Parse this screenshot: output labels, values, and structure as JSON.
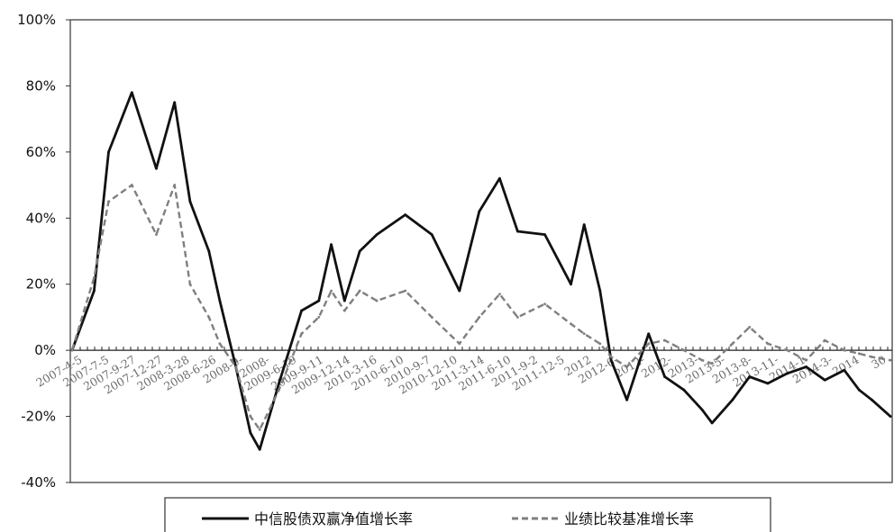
{
  "chart_data": {
    "type": "line",
    "title": "",
    "xlabel": "",
    "ylabel": "",
    "ylim": [
      -0.4,
      1.0
    ],
    "yticks": [
      "100%",
      "80%",
      "60%",
      "40%",
      "20%",
      "0%",
      "-20%",
      "-40%"
    ],
    "grid": false,
    "legend_position": "bottom",
    "x_tick_labels": [
      "2007-4-5",
      "2007-7-5",
      "2007-9-27",
      "2007-12-27",
      "2008-3-28",
      "2008-6-26",
      "2008-9-",
      "2008-",
      "2009-6-19",
      "2009-9-11",
      "2009-12-14",
      "2010-3-16",
      "2010-6-10",
      "2010-9-7",
      "2010-12-10",
      "2011-3-14",
      "2011-6-10",
      "2011-9-2",
      "2011-12-5",
      "2012",
      "2012-6-",
      "2012-",
      "2012-",
      "2013-",
      "2013-5-",
      "2013-8-",
      "2013-11-",
      "2014-1",
      "2014-3-",
      "2014",
      "30"
    ],
    "x": [
      "2007-04-05",
      "2007-06-15",
      "2007-08-01",
      "2007-10-15",
      "2008-01-02",
      "2008-03-01",
      "2008-04-20",
      "2008-06-20",
      "2008-07-25",
      "2008-09-15",
      "2008-11-01",
      "2008-12-01",
      "2009-02-01",
      "2009-04-15",
      "2009-06-10",
      "2009-07-20",
      "2009-09-01",
      "2009-10-20",
      "2009-12-14",
      "2010-03-16",
      "2010-06-10",
      "2010-09-07",
      "2010-11-10",
      "2011-01-15",
      "2011-03-14",
      "2011-06-10",
      "2011-09-02",
      "2011-10-15",
      "2011-12-05",
      "2012-01-10",
      "2012-03-01",
      "2012-05-10",
      "2012-07-01",
      "2012-09-01",
      "2012-10-30",
      "2012-12-01",
      "2013-02-05",
      "2013-04-01",
      "2013-05-30",
      "2013-08-01",
      "2013-10-01",
      "2013-11-30",
      "2014-02-01",
      "2014-03-21",
      "2014-05-01",
      "2014-06-30"
    ],
    "series": [
      {
        "name": "中信股债双赢净值增长率",
        "values": [
          0.0,
          0.18,
          0.6,
          0.78,
          0.55,
          0.75,
          0.45,
          0.3,
          0.15,
          -0.05,
          -0.25,
          -0.3,
          -0.1,
          0.12,
          0.15,
          0.32,
          0.15,
          0.3,
          0.35,
          0.41,
          0.35,
          0.18,
          0.42,
          0.52,
          0.36,
          0.35,
          0.2,
          0.38,
          0.18,
          -0.03,
          -0.15,
          0.05,
          -0.08,
          -0.12,
          -0.18,
          -0.22,
          -0.15,
          -0.08,
          -0.1,
          -0.07,
          -0.05,
          -0.09,
          -0.06,
          -0.12,
          -0.15,
          -0.2
        ],
        "color": "#111111",
        "style": "solid"
      },
      {
        "name": "业绩比较基准增长率",
        "values": [
          0.0,
          0.22,
          0.45,
          0.5,
          0.35,
          0.5,
          0.2,
          0.1,
          0.02,
          -0.05,
          -0.2,
          -0.24,
          -0.12,
          0.05,
          0.1,
          0.18,
          0.12,
          0.18,
          0.15,
          0.18,
          0.1,
          0.02,
          0.1,
          0.17,
          0.1,
          0.14,
          0.08,
          0.05,
          0.02,
          -0.02,
          -0.05,
          0.02,
          0.03,
          0.0,
          -0.03,
          -0.04,
          0.02,
          0.07,
          0.02,
          0.0,
          -0.03,
          0.03,
          0.0,
          -0.01,
          -0.02,
          -0.03
        ],
        "color": "#7f7f7f",
        "style": "dashed"
      }
    ]
  }
}
